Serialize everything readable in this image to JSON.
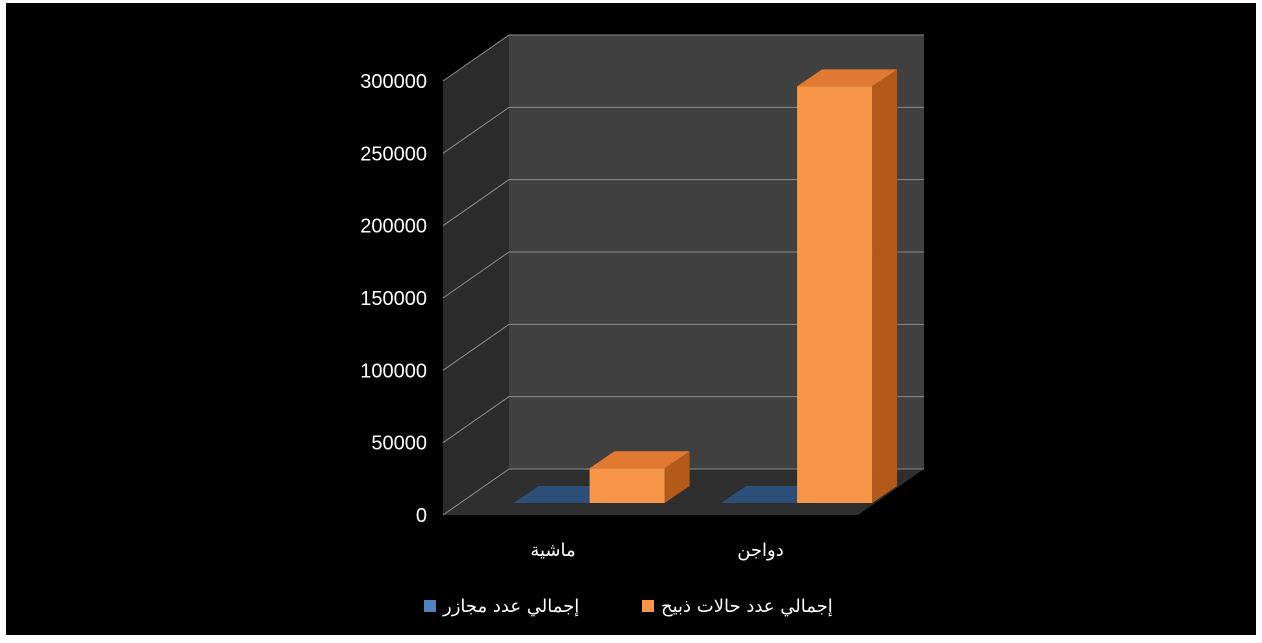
{
  "chart_data": {
    "type": "bar",
    "style": "3d-clustered",
    "categories": [
      "ماشية",
      "دواجن"
    ],
    "series": [
      {
        "name": "إجمالي عدد مجازر",
        "values": [
          0,
          0
        ],
        "color": "#4f81bd"
      },
      {
        "name": "إجمالي عدد حالات ذبيح",
        "values": [
          24000,
          288000
        ],
        "color": "#f79646"
      }
    ],
    "y_ticks": [
      "0",
      "50000",
      "100000",
      "150000",
      "200000",
      "250000",
      "300000"
    ],
    "ylim": [
      0,
      300000
    ],
    "grid": true,
    "legend_position": "bottom",
    "background_color": "#000000",
    "wall_color": "#404040",
    "text_color": "#ffffff"
  }
}
